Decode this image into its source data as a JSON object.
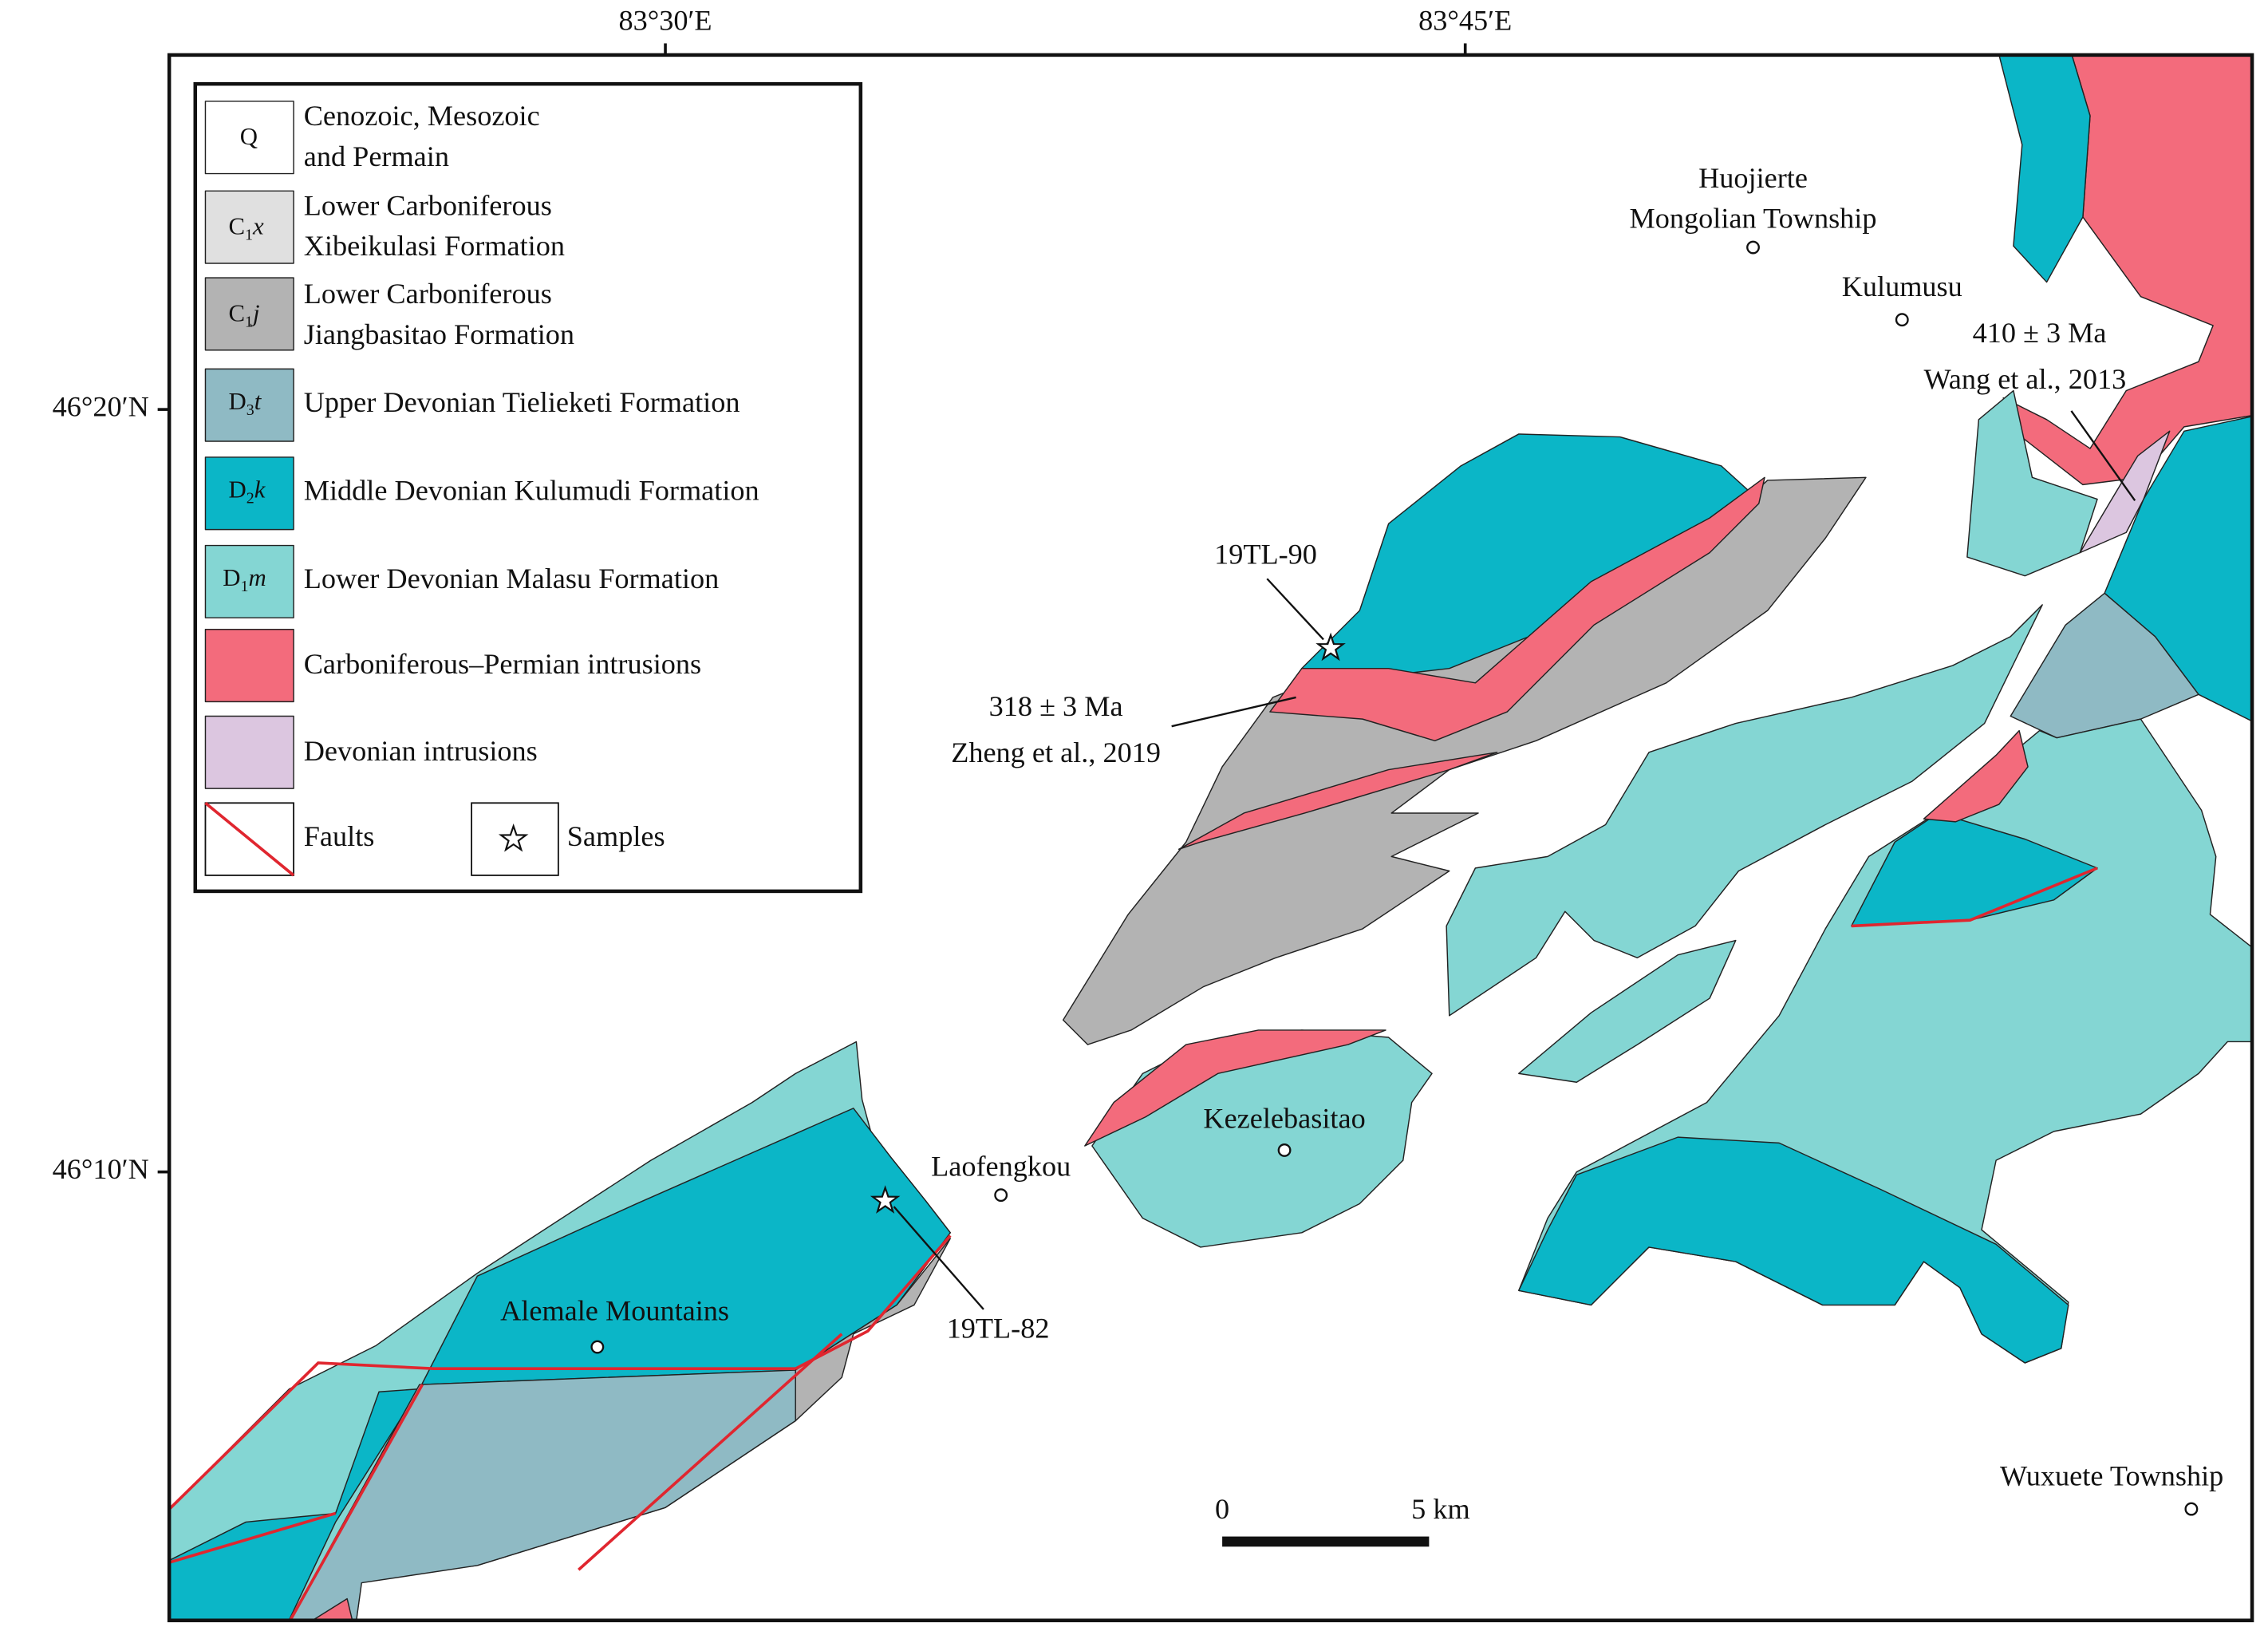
{
  "map": {
    "longitude_labels": [
      "83°30′E",
      "83°45′E"
    ],
    "latitude_labels": [
      "46°20′N",
      "46°10′N"
    ],
    "legend": [
      {
        "symbol": [
          "Q"
        ],
        "label": [
          "Cenozoic, Mesozoic",
          "and Permain"
        ]
      },
      {
        "symbol": [
          "C",
          "1",
          "x"
        ],
        "label": [
          "Lower Carboniferous",
          "Xibeikulasi Formation"
        ]
      },
      {
        "symbol": [
          "C",
          "1",
          "j"
        ],
        "label": [
          "Lower Carboniferous",
          "Jiangbasitao Formation"
        ]
      },
      {
        "symbol": [
          "D",
          "3",
          "t"
        ],
        "label": [
          "Upper Devonian Tielieketi Formation"
        ]
      },
      {
        "symbol": [
          "D",
          "2",
          "k"
        ],
        "label": [
          "Middle Devonian Kulumudi Formation"
        ]
      },
      {
        "symbol": [
          "D",
          "1",
          "m"
        ],
        "label": [
          "Lower Devonian Malasu Formation"
        ]
      },
      {
        "label": [
          "Carboniferous–Permian intrusions"
        ]
      },
      {
        "label": [
          "Devonian intrusions"
        ]
      },
      {
        "label": [
          "Faults"
        ]
      },
      {
        "label": [
          "Samples"
        ]
      }
    ],
    "places": [
      {
        "lines": [
          "Huojierte",
          "Mongolian Township"
        ]
      },
      {
        "lines": [
          "Kulumusu"
        ]
      },
      {
        "lines": [
          "Laofengkou"
        ]
      },
      {
        "lines": [
          "Kezelebasitao"
        ]
      },
      {
        "lines": [
          "Alemale Mountains"
        ]
      },
      {
        "lines": [
          "Wuxuete Township"
        ]
      }
    ],
    "samples": [
      "19TL-90",
      "19TL-82"
    ],
    "ages": [
      {
        "lines": [
          "318 ± 3 Ma",
          "Zheng et al., 2019"
        ]
      },
      {
        "lines": [
          "410 ± 3 Ma",
          "Wang et al., 2013"
        ]
      }
    ],
    "scale_bar": [
      "0",
      "5 km"
    ]
  }
}
